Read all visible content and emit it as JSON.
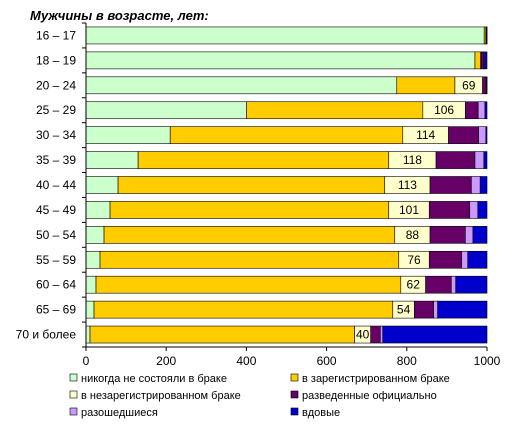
{
  "chart_data": {
    "type": "bar",
    "orientation": "horizontal",
    "stacked": true,
    "title": "Мужчины в возрасте, лет:",
    "categories": [
      "16 – 17",
      "18 – 19",
      "20 – 24",
      "25 – 29",
      "30 – 34",
      "35 – 39",
      "40 – 44",
      "45 – 49",
      "50 – 54",
      "55 – 59",
      "60 – 64",
      "65 – 69",
      "70 и более"
    ],
    "xlim": [
      0,
      1000
    ],
    "xticks": [
      "0",
      "200",
      "400",
      "600",
      "800",
      "1000"
    ],
    "grid": false,
    "legend_position": "bottom",
    "series": [
      {
        "name": "никогда не состояли в браке",
        "color": "#ccffcc",
        "values": [
          993,
          970,
          775,
          400,
          210,
          130,
          80,
          60,
          45,
          35,
          25,
          20,
          10
        ]
      },
      {
        "name": "в зарегистрированном браке",
        "color": "#ffcc00",
        "values": [
          4,
          14,
          145,
          440,
          580,
          625,
          665,
          695,
          725,
          745,
          760,
          745,
          660
        ]
      },
      {
        "name": "в незарегистрированном браке",
        "color": "#ffffcc",
        "values": [
          1,
          2,
          69,
          106,
          114,
          118,
          113,
          101,
          88,
          76,
          62,
          54,
          40
        ]
      },
      {
        "name": "разведенные официально",
        "color": "#660066",
        "values": [
          1,
          6,
          9,
          32,
          75,
          97,
          103,
          101,
          88,
          81,
          64,
          48,
          24
        ]
      },
      {
        "name": "разошедшиеся",
        "color": "#cc99ff",
        "values": [
          0,
          2,
          1,
          17,
          18,
          22,
          22,
          20,
          19,
          15,
          11,
          10,
          6
        ]
      },
      {
        "name": "вдовые",
        "color": "#0000cc",
        "values": [
          1,
          6,
          1,
          5,
          3,
          8,
          17,
          23,
          35,
          48,
          78,
          123,
          260
        ]
      }
    ],
    "data_labels": {
      "series_index": 2,
      "values": [
        "",
        "",
        "69",
        "106",
        "114",
        "118",
        "113",
        "101",
        "88",
        "76",
        "62",
        "54",
        "40"
      ]
    }
  }
}
